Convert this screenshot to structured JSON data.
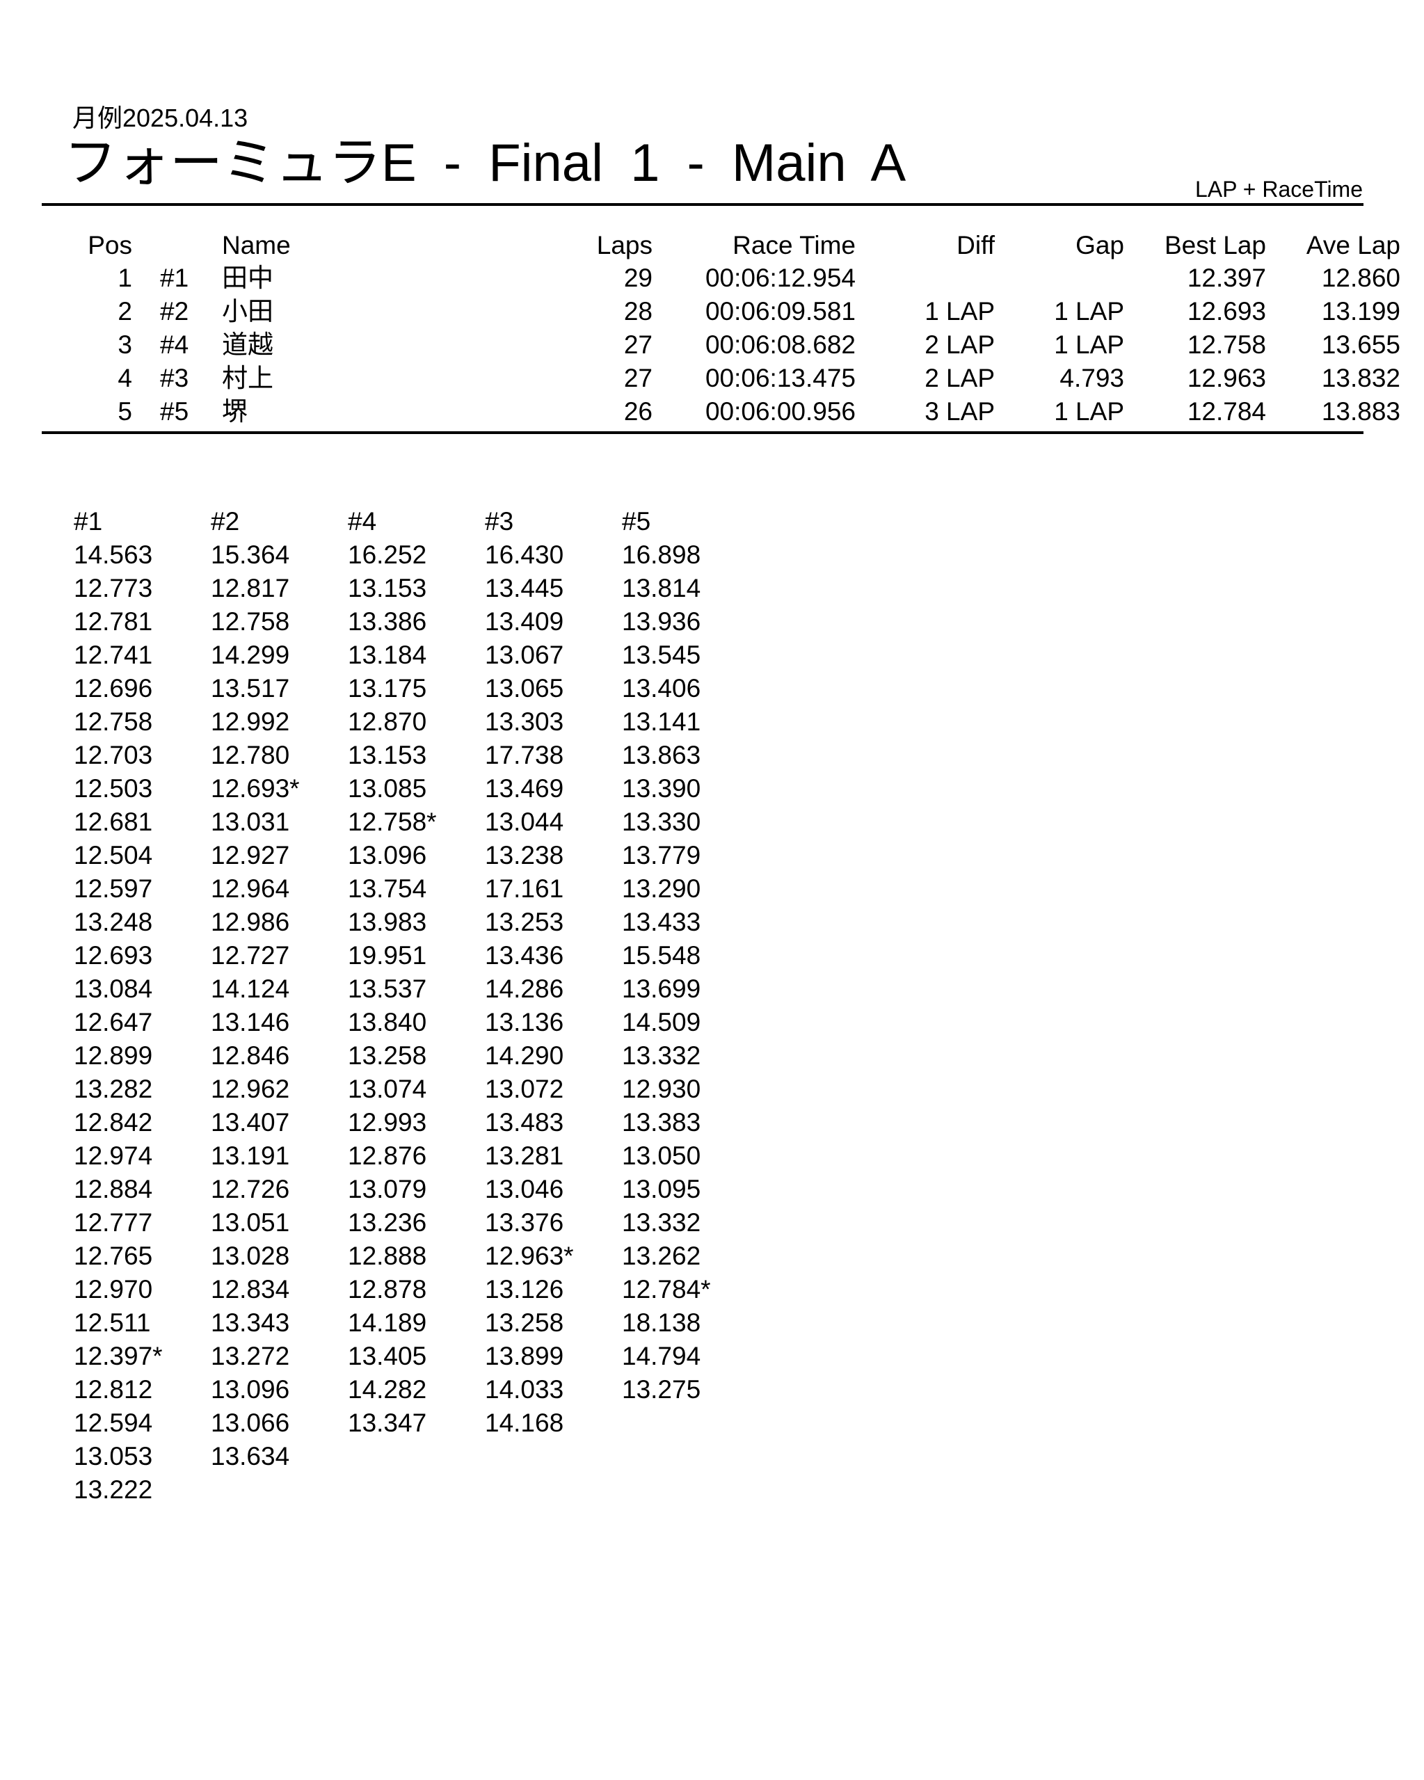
{
  "header": {
    "date": "月例2025.04.13",
    "title": "フォーミュラE - Final 1 - Main A",
    "timing_mode": "LAP + RaceTime"
  },
  "results": {
    "columns": [
      "Pos",
      "Name",
      "Laps",
      "Race Time",
      "Diff",
      "Gap",
      "Best Lap",
      "Ave Lap"
    ],
    "rows": [
      {
        "pos": "1",
        "car": "#1",
        "name": "田中",
        "laps": "29",
        "race_time": "00:06:12.954",
        "diff": "",
        "gap": "",
        "best_lap": "12.397",
        "ave_lap": "12.860"
      },
      {
        "pos": "2",
        "car": "#2",
        "name": "小田",
        "laps": "28",
        "race_time": "00:06:09.581",
        "diff": "1 LAP",
        "gap": "1 LAP",
        "best_lap": "12.693",
        "ave_lap": "13.199"
      },
      {
        "pos": "3",
        "car": "#4",
        "name": "道越",
        "laps": "27",
        "race_time": "00:06:08.682",
        "diff": "2 LAP",
        "gap": "1 LAP",
        "best_lap": "12.758",
        "ave_lap": "13.655"
      },
      {
        "pos": "4",
        "car": "#3",
        "name": "村上",
        "laps": "27",
        "race_time": "00:06:13.475",
        "diff": "2 LAP",
        "gap": "4.793",
        "best_lap": "12.963",
        "ave_lap": "13.832"
      },
      {
        "pos": "5",
        "car": "#5",
        "name": "堺",
        "laps": "26",
        "race_time": "00:06:00.956",
        "diff": "3 LAP",
        "gap": "1 LAP",
        "best_lap": "12.784",
        "ave_lap": "13.883"
      }
    ]
  },
  "lap_chart": {
    "columns": [
      "#1",
      "#2",
      "#4",
      "#3",
      "#5"
    ],
    "laps": [
      [
        "14.563",
        "15.364",
        "16.252",
        "16.430",
        "16.898"
      ],
      [
        "12.773",
        "12.817",
        "13.153",
        "13.445",
        "13.814"
      ],
      [
        "12.781",
        "12.758",
        "13.386",
        "13.409",
        "13.936"
      ],
      [
        "12.741",
        "14.299",
        "13.184",
        "13.067",
        "13.545"
      ],
      [
        "12.696",
        "13.517",
        "13.175",
        "13.065",
        "13.406"
      ],
      [
        "12.758",
        "12.992",
        "12.870",
        "13.303",
        "13.141"
      ],
      [
        "12.703",
        "12.780",
        "13.153",
        "17.738",
        "13.863"
      ],
      [
        "12.503",
        "12.693*",
        "13.085",
        "13.469",
        "13.390"
      ],
      [
        "12.681",
        "13.031",
        "12.758*",
        "13.044",
        "13.330"
      ],
      [
        "12.504",
        "12.927",
        "13.096",
        "13.238",
        "13.779"
      ],
      [
        "12.597",
        "12.964",
        "13.754",
        "17.161",
        "13.290"
      ],
      [
        "13.248",
        "12.986",
        "13.983",
        "13.253",
        "13.433"
      ],
      [
        "12.693",
        "12.727",
        "19.951",
        "13.436",
        "15.548"
      ],
      [
        "13.084",
        "14.124",
        "13.537",
        "14.286",
        "13.699"
      ],
      [
        "12.647",
        "13.146",
        "13.840",
        "13.136",
        "14.509"
      ],
      [
        "12.899",
        "12.846",
        "13.258",
        "14.290",
        "13.332"
      ],
      [
        "13.282",
        "12.962",
        "13.074",
        "13.072",
        "12.930"
      ],
      [
        "12.842",
        "13.407",
        "12.993",
        "13.483",
        "13.383"
      ],
      [
        "12.974",
        "13.191",
        "12.876",
        "13.281",
        "13.050"
      ],
      [
        "12.884",
        "12.726",
        "13.079",
        "13.046",
        "13.095"
      ],
      [
        "12.777",
        "13.051",
        "13.236",
        "13.376",
        "13.332"
      ],
      [
        "12.765",
        "13.028",
        "12.888",
        "12.963*",
        "13.262"
      ],
      [
        "12.970",
        "12.834",
        "12.878",
        "13.126",
        "12.784*"
      ],
      [
        "12.511",
        "13.343",
        "14.189",
        "13.258",
        "18.138"
      ],
      [
        "12.397*",
        "13.272",
        "13.405",
        "13.899",
        "14.794"
      ],
      [
        "12.812",
        "13.096",
        "14.282",
        "14.033",
        "13.275"
      ],
      [
        "12.594",
        "13.066",
        "13.347",
        "14.168",
        ""
      ],
      [
        "13.053",
        "13.634",
        "",
        "",
        ""
      ],
      [
        "13.222",
        "",
        "",
        "",
        ""
      ]
    ]
  }
}
